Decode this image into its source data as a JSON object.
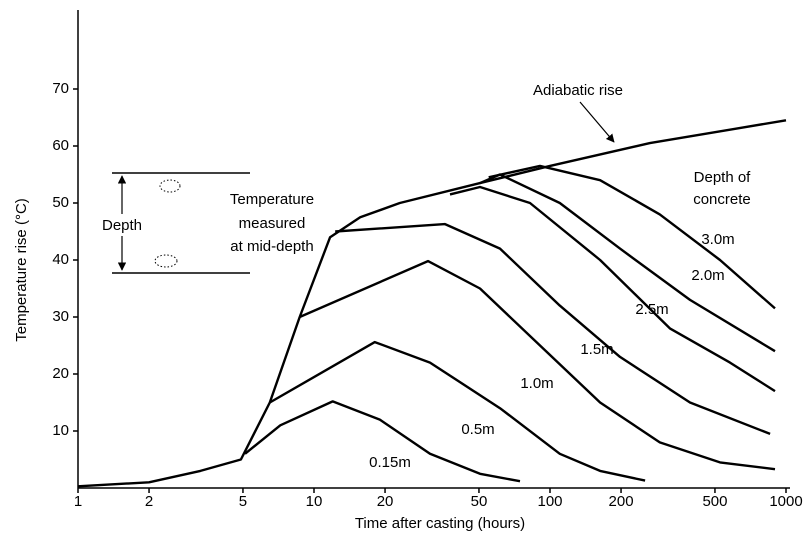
{
  "chart_data": {
    "type": "line",
    "x_label": "Time after casting (hours)",
    "y_label": "Temperature rise (°C)",
    "xscale": "log",
    "xlim": [
      1,
      1000
    ],
    "xticks": [
      1,
      2,
      5,
      10,
      20,
      50,
      100,
      200,
      500,
      1000
    ],
    "ylim": [
      0,
      84
    ],
    "yticks": [
      10,
      20,
      30,
      40,
      50,
      60,
      70
    ],
    "color": "#000000",
    "annotation": "Adiabatic rise",
    "legend_title": [
      "Depth of",
      "concrete"
    ],
    "inset": {
      "depth_label": "Depth",
      "measure_label": [
        "Temperature",
        "measured",
        "at mid-depth"
      ]
    },
    "series": [
      {
        "name": "Adiabatic rise",
        "x": [
          1,
          2,
          3.3,
          4.9,
          6.5,
          8.7,
          11.7,
          15.7,
          23.1,
          50.5,
          100,
          265,
          1000
        ],
        "values": [
          0.3,
          1,
          3,
          5,
          15,
          30,
          44,
          47.5,
          50,
          53.5,
          56.5,
          60.5,
          64.5
        ]
      },
      {
        "name": "0.15m",
        "x": [
          5.1,
          7.2,
          12,
          19,
          31,
          50.5,
          74.6
        ],
        "values": [
          6,
          11,
          15.2,
          12,
          6,
          2.5,
          1.2
        ]
      },
      {
        "name": "0.5m",
        "x": [
          6.5,
          18.1,
          31,
          61.4,
          110,
          163,
          253
        ],
        "values": [
          15,
          25.6,
          22,
          14,
          6,
          3,
          1.3
        ]
      },
      {
        "name": "1.0m",
        "x": [
          8.7,
          30.4,
          50.5,
          90.7,
          163,
          292,
          525,
          898
        ],
        "values": [
          30,
          39.8,
          35,
          25,
          15,
          8,
          4.5,
          3.3
        ]
      },
      {
        "name": "1.5m",
        "x": [
          12.3,
          35.9,
          61.4,
          110,
          198,
          392,
          856
        ],
        "values": [
          45,
          46.3,
          42,
          32,
          23,
          15,
          9.5
        ]
      },
      {
        "name": "2.5m",
        "x": [
          37.7,
          50.5,
          82.3,
          163,
          322,
          579,
          898
        ],
        "values": [
          51.5,
          52.8,
          50,
          40,
          28,
          22,
          17
        ]
      },
      {
        "name": "2.0m",
        "x": [
          50.5,
          61.4,
          110,
          198,
          392,
          898
        ],
        "values": [
          53.5,
          55,
          50,
          42,
          33,
          24
        ]
      },
      {
        "name": "3.0m",
        "x": [
          55,
          90.7,
          163,
          292,
          525,
          898
        ],
        "values": [
          54.5,
          56.5,
          54,
          48,
          40,
          31.5
        ]
      }
    ]
  }
}
